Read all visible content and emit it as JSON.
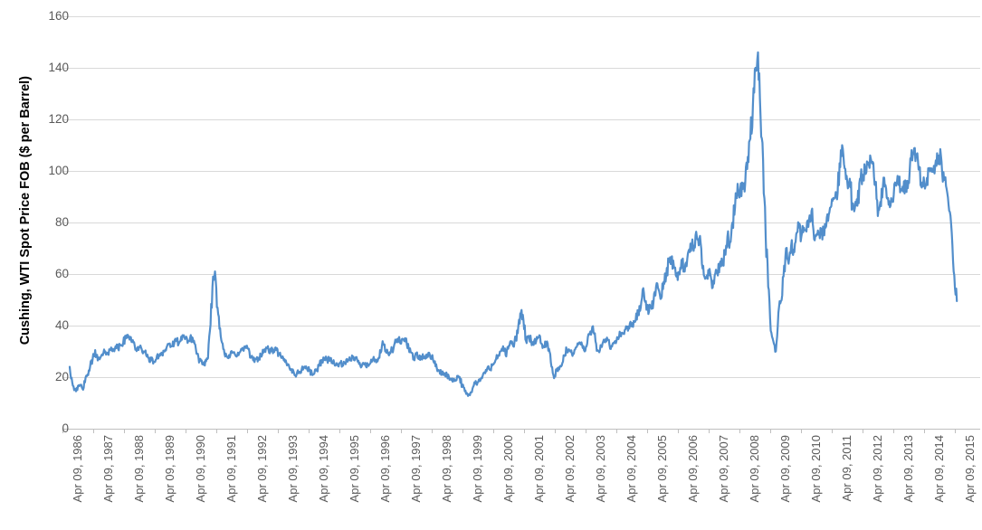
{
  "chart_data": {
    "type": "line",
    "title": "",
    "xlabel": "",
    "ylabel": "Cushing, WTI Spot Price FOB ($ per Barrel)",
    "ylim": [
      0,
      160
    ],
    "y_tick_step": 20,
    "grid": "horizontal",
    "legend": "none",
    "y_axis": {
      "tick_labels": [
        "0",
        "20",
        "40",
        "60",
        "80",
        "100",
        "120",
        "140",
        "160"
      ]
    },
    "x_axis": {
      "tick_labels": [
        "Apr 09, 1986",
        "Apr 09, 1987",
        "Apr 09, 1988",
        "Apr 09, 1989",
        "Apr 09, 1990",
        "Apr 09, 1991",
        "Apr 09, 1992",
        "Apr 09, 1993",
        "Apr 09, 1994",
        "Apr 09, 1995",
        "Apr 09, 1996",
        "Apr 09, 1997",
        "Apr 09, 1998",
        "Apr 09, 1999",
        "Apr 09, 2000",
        "Apr 09, 2001",
        "Apr 09, 2002",
        "Apr 09, 2003",
        "Apr 09, 2004",
        "Apr 09, 2005",
        "Apr 09, 2006",
        "Apr 09, 2007",
        "Apr 09, 2008",
        "Apr 09, 2009",
        "Apr 09, 2010",
        "Apr 09, 2011",
        "Apr 09, 2012",
        "Apr 09, 2013",
        "Apr 09, 2014",
        "Apr 09, 2015"
      ]
    },
    "series": [
      {
        "name": "Cushing, WTI Spot Price FOB ($ per Barrel)",
        "frequency": "monthly-estimated-from-plot",
        "start_month": "1986-01",
        "end_month": "2015-01",
        "values": [
          24,
          18,
          15.5,
          15,
          17,
          15.5,
          18,
          21,
          24,
          27,
          30.5,
          26.5,
          27.5,
          28.5,
          30,
          29.5,
          30.5,
          31,
          32,
          31,
          32.5,
          33.5,
          35,
          36,
          35.5,
          33.5,
          31,
          30.5,
          31.5,
          30,
          28.5,
          27.5,
          26.5,
          26,
          27,
          28.5,
          29.5,
          30,
          31.5,
          33,
          32,
          33,
          34,
          33.5,
          34.5,
          35.5,
          35,
          34,
          35.5,
          33,
          29,
          26.5,
          25,
          24.5,
          27,
          38,
          55,
          61,
          47,
          39,
          33,
          28,
          27.5,
          28.5,
          29.5,
          28.5,
          29.5,
          30,
          30.5,
          32,
          31,
          27.5,
          26.5,
          27,
          27.5,
          28.5,
          29.5,
          31.5,
          30.5,
          30,
          30.5,
          30.5,
          29,
          27.5,
          26.5,
          25.5,
          24.5,
          23,
          21.5,
          21,
          22,
          23,
          24,
          23.5,
          22.5,
          21.5,
          21.5,
          23,
          25,
          26.5,
          27.5,
          26.5,
          27.5,
          26,
          24.5,
          25,
          25.5,
          24.5,
          25.5,
          26,
          26.5,
          28,
          27.5,
          26,
          24.5,
          25.5,
          25.5,
          24.5,
          25.5,
          27,
          26.5,
          27,
          29.5,
          33,
          30,
          29,
          30,
          31,
          33.5,
          35,
          33,
          34.5,
          35,
          31,
          29.5,
          27.5,
          29,
          27,
          27.5,
          28,
          27.5,
          29.5,
          28,
          25.5,
          23.5,
          22.5,
          21,
          21.5,
          21,
          19,
          19.5,
          18.5,
          20.5,
          20,
          16.5,
          14.5,
          13.5,
          13,
          15.5,
          17.5,
          18,
          18.5,
          20.5,
          21.5,
          24,
          23,
          25,
          26.5,
          28,
          30,
          32,
          28.5,
          31,
          34,
          32,
          35,
          40,
          45,
          42,
          34,
          36,
          34,
          32.5,
          34,
          35.5,
          33,
          32,
          33.5,
          31,
          24,
          19.6,
          22.5,
          23,
          24.5,
          28.5,
          30.5,
          30.5,
          29,
          30.5,
          32,
          33.5,
          32.5,
          30,
          33,
          37,
          39.5,
          37,
          30.5,
          30.5,
          33,
          33.5,
          34.5,
          31,
          33,
          34,
          35,
          36.5,
          37,
          38.5,
          38,
          41.5,
          39.5,
          42,
          45.5,
          47,
          54.5,
          49.5,
          44.5,
          47.5,
          49,
          55,
          54,
          50.5,
          57,
          59.5,
          65.5,
          66.5,
          63,
          59,
          60,
          65.5,
          62,
          63,
          69.5,
          71,
          71,
          74.5,
          73.5,
          64,
          59,
          59.5,
          62,
          54.5,
          59.5,
          60.5,
          64,
          63.5,
          67.5,
          74.5,
          72.5,
          80,
          86,
          95,
          92,
          93,
          95.5,
          105.5,
          112.5,
          125.5,
          140,
          146,
          121,
          104,
          75,
          55,
          38,
          34,
          30,
          45,
          49.5,
          59,
          70,
          64,
          71,
          69.5,
          75.5,
          78,
          74.5,
          78,
          76.5,
          81,
          84.5,
          73.5,
          75.5,
          76,
          76.5,
          75,
          82,
          84,
          89,
          89.5,
          89,
          103,
          110,
          101,
          96,
          97,
          86.5,
          85.5,
          86.5,
          97,
          98.5,
          100.5,
          102.5,
          106,
          103.5,
          94.5,
          82.5,
          88,
          94,
          94.5,
          89.5,
          86.5,
          88,
          95,
          95.5,
          93,
          92,
          94.5,
          96,
          104.5,
          106.5,
          106.5,
          100.5,
          94,
          97.5,
          94.5,
          101,
          101,
          102,
          102,
          106,
          103.5,
          96.5,
          93,
          84.5,
          76,
          59.5,
          49.5
        ]
      }
    ],
    "colors": {
      "line": "#528ecb",
      "gridline": "#d9d9d9",
      "axis_line": "#bfbfbf",
      "tick_label": "#595959",
      "axis_title": "#000000",
      "background": "#ffffff"
    },
    "render_noise": {
      "subdivisions": 4,
      "base_amplitude": 0.45,
      "relative_amplitude": 0.03,
      "seed": 42
    }
  }
}
